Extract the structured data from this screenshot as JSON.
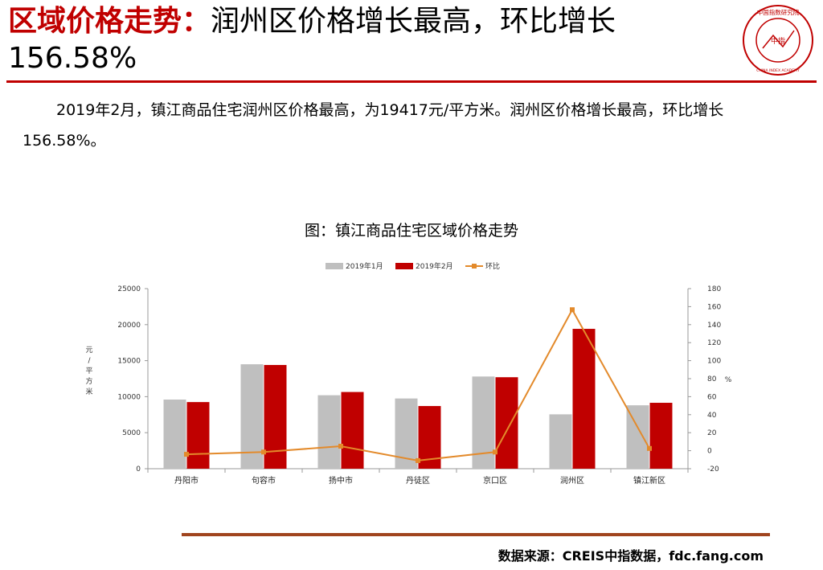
{
  "header": {
    "title_bold": "区域价格走势：",
    "title_rest": "润州区价格增长最高，环比增长156.58%"
  },
  "logo": {
    "ring_text": "中国指数研究院",
    "ring_text_en": "CHINA INDEX ACADEMY",
    "center_text": "中指",
    "colors": {
      "ring": "#c00000"
    }
  },
  "paragraph": "2019年2月，镇江商品住宅润州区价格最高，为19417元/平方米。润州区价格增长最高，环比增长156.58%。",
  "chart_title": "图：镇江商品住宅区域价格走势",
  "chart_data": {
    "type": "bar",
    "categories": [
      "丹阳市",
      "句容市",
      "扬中市",
      "丹徒区",
      "京口区",
      "润州区",
      "镇江新区"
    ],
    "series": [
      {
        "name": "2019年1月",
        "type": "bar",
        "axis": "left",
        "color": "#bfbfbf",
        "values": [
          9600,
          14500,
          10200,
          9750,
          12800,
          7550,
          8800
        ]
      },
      {
        "name": "2019年2月",
        "type": "bar",
        "axis": "left",
        "color": "#c00000",
        "values": [
          9250,
          14400,
          10650,
          8700,
          12700,
          19417,
          9150
        ]
      },
      {
        "name": "环比",
        "type": "line",
        "axis": "right",
        "color": "#e38a2b",
        "values": [
          -4,
          -1.5,
          5,
          -11,
          -1.5,
          156.58,
          2.5
        ]
      }
    ],
    "ylabel": "元/平方米",
    "ylabel_right": "%",
    "ylim": [
      0,
      25000
    ],
    "yticks": [
      0,
      5000,
      10000,
      15000,
      20000,
      25000
    ],
    "ylim_right": [
      -20,
      180
    ],
    "yticks_right": [
      -20,
      0,
      20,
      40,
      60,
      80,
      100,
      120,
      140,
      160,
      180
    ],
    "legend_position": "top-center",
    "grid": false
  },
  "footer": {
    "source": "数据来源：CREIS中指数据，fdc.fang.com"
  }
}
